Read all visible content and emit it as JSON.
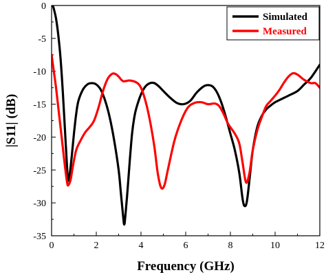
{
  "chart_data": {
    "type": "line",
    "xlabel": "Frequency (GHz)",
    "ylabel": "|S11| (dB)",
    "xlim": [
      0,
      12
    ],
    "ylim": [
      -35,
      0
    ],
    "xticks": [
      0,
      2,
      4,
      6,
      8,
      10,
      12
    ],
    "yticks": [
      0,
      -5,
      -10,
      -15,
      -20,
      -25,
      -30,
      -35
    ],
    "xtick_labels": [
      "0",
      "2",
      "4",
      "6",
      "8",
      "10",
      "12"
    ],
    "ytick_labels": [
      "0",
      "-5",
      "-10",
      "-15",
      "-20",
      "-25",
      "-30",
      "-35"
    ],
    "grid": false,
    "legend_position": "top-right",
    "series": [
      {
        "name": "Simulated",
        "color": "#000000",
        "points": [
          [
            0.05,
            0.0
          ],
          [
            0.1,
            -0.5
          ],
          [
            0.2,
            -2.0
          ],
          [
            0.3,
            -4.5
          ],
          [
            0.4,
            -8.0
          ],
          [
            0.5,
            -13.0
          ],
          [
            0.6,
            -19.0
          ],
          [
            0.7,
            -25.0
          ],
          [
            0.75,
            -26.6
          ],
          [
            0.8,
            -26.0
          ],
          [
            0.9,
            -23.0
          ],
          [
            1.0,
            -19.5
          ],
          [
            1.1,
            -16.5
          ],
          [
            1.2,
            -14.5
          ],
          [
            1.4,
            -12.8
          ],
          [
            1.6,
            -12.0
          ],
          [
            1.8,
            -11.8
          ],
          [
            2.0,
            -12.0
          ],
          [
            2.2,
            -12.8
          ],
          [
            2.4,
            -14.5
          ],
          [
            2.6,
            -17.0
          ],
          [
            2.8,
            -20.5
          ],
          [
            3.0,
            -25.0
          ],
          [
            3.1,
            -28.5
          ],
          [
            3.2,
            -32.0
          ],
          [
            3.25,
            -33.3
          ],
          [
            3.3,
            -32.0
          ],
          [
            3.4,
            -28.0
          ],
          [
            3.5,
            -23.5
          ],
          [
            3.6,
            -19.5
          ],
          [
            3.7,
            -17.0
          ],
          [
            3.8,
            -15.5
          ],
          [
            4.0,
            -13.5
          ],
          [
            4.2,
            -12.3
          ],
          [
            4.4,
            -11.8
          ],
          [
            4.6,
            -11.8
          ],
          [
            4.8,
            -12.3
          ],
          [
            5.0,
            -13.0
          ],
          [
            5.3,
            -14.0
          ],
          [
            5.6,
            -14.8
          ],
          [
            5.9,
            -15.0
          ],
          [
            6.2,
            -14.5
          ],
          [
            6.5,
            -13.2
          ],
          [
            6.8,
            -12.3
          ],
          [
            7.0,
            -12.1
          ],
          [
            7.2,
            -12.3
          ],
          [
            7.4,
            -13.2
          ],
          [
            7.6,
            -14.8
          ],
          [
            7.8,
            -17.0
          ],
          [
            8.0,
            -19.5
          ],
          [
            8.2,
            -22.0
          ],
          [
            8.4,
            -25.5
          ],
          [
            8.55,
            -29.5
          ],
          [
            8.65,
            -30.5
          ],
          [
            8.75,
            -29.5
          ],
          [
            8.9,
            -25.0
          ],
          [
            9.0,
            -22.0
          ],
          [
            9.2,
            -18.5
          ],
          [
            9.4,
            -16.8
          ],
          [
            9.6,
            -15.8
          ],
          [
            9.8,
            -15.2
          ],
          [
            10.0,
            -14.7
          ],
          [
            10.3,
            -14.2
          ],
          [
            10.6,
            -13.7
          ],
          [
            11.0,
            -13.0
          ],
          [
            11.3,
            -12.0
          ],
          [
            11.6,
            -11.0
          ],
          [
            12.0,
            -9.0
          ]
        ]
      },
      {
        "name": "Measured",
        "color": "#ff0000",
        "points": [
          [
            0.0,
            -7.5
          ],
          [
            0.1,
            -10.0
          ],
          [
            0.2,
            -12.5
          ],
          [
            0.3,
            -15.5
          ],
          [
            0.4,
            -18.5
          ],
          [
            0.5,
            -21.5
          ],
          [
            0.6,
            -24.5
          ],
          [
            0.7,
            -27.0
          ],
          [
            0.75,
            -27.3
          ],
          [
            0.85,
            -26.5
          ],
          [
            0.95,
            -24.5
          ],
          [
            1.1,
            -22.0
          ],
          [
            1.3,
            -20.5
          ],
          [
            1.5,
            -19.3
          ],
          [
            1.7,
            -18.5
          ],
          [
            1.9,
            -17.5
          ],
          [
            2.1,
            -15.5
          ],
          [
            2.3,
            -13.0
          ],
          [
            2.5,
            -11.2
          ],
          [
            2.7,
            -10.4
          ],
          [
            2.85,
            -10.4
          ],
          [
            3.0,
            -10.8
          ],
          [
            3.2,
            -11.5
          ],
          [
            3.5,
            -11.4
          ],
          [
            3.8,
            -11.7
          ],
          [
            4.0,
            -12.5
          ],
          [
            4.2,
            -14.5
          ],
          [
            4.4,
            -17.5
          ],
          [
            4.6,
            -21.5
          ],
          [
            4.75,
            -25.5
          ],
          [
            4.9,
            -27.7
          ],
          [
            5.05,
            -27.3
          ],
          [
            5.2,
            -25.0
          ],
          [
            5.5,
            -20.5
          ],
          [
            5.8,
            -17.5
          ],
          [
            6.1,
            -15.5
          ],
          [
            6.4,
            -14.8
          ],
          [
            6.7,
            -14.7
          ],
          [
            7.0,
            -15.0
          ],
          [
            7.3,
            -14.9
          ],
          [
            7.5,
            -15.3
          ],
          [
            7.7,
            -16.5
          ],
          [
            7.9,
            -18.0
          ],
          [
            8.2,
            -19.5
          ],
          [
            8.4,
            -21.0
          ],
          [
            8.55,
            -24.0
          ],
          [
            8.7,
            -26.9
          ],
          [
            8.85,
            -25.5
          ],
          [
            9.0,
            -22.0
          ],
          [
            9.2,
            -19.0
          ],
          [
            9.4,
            -17.0
          ],
          [
            9.6,
            -15.3
          ],
          [
            9.8,
            -14.5
          ],
          [
            10.0,
            -13.7
          ],
          [
            10.2,
            -12.8
          ],
          [
            10.4,
            -11.7
          ],
          [
            10.6,
            -10.8
          ],
          [
            10.8,
            -10.3
          ],
          [
            11.0,
            -10.5
          ],
          [
            11.3,
            -11.3
          ],
          [
            11.6,
            -11.8
          ],
          [
            11.8,
            -11.8
          ],
          [
            12.0,
            -12.5
          ]
        ]
      }
    ]
  }
}
